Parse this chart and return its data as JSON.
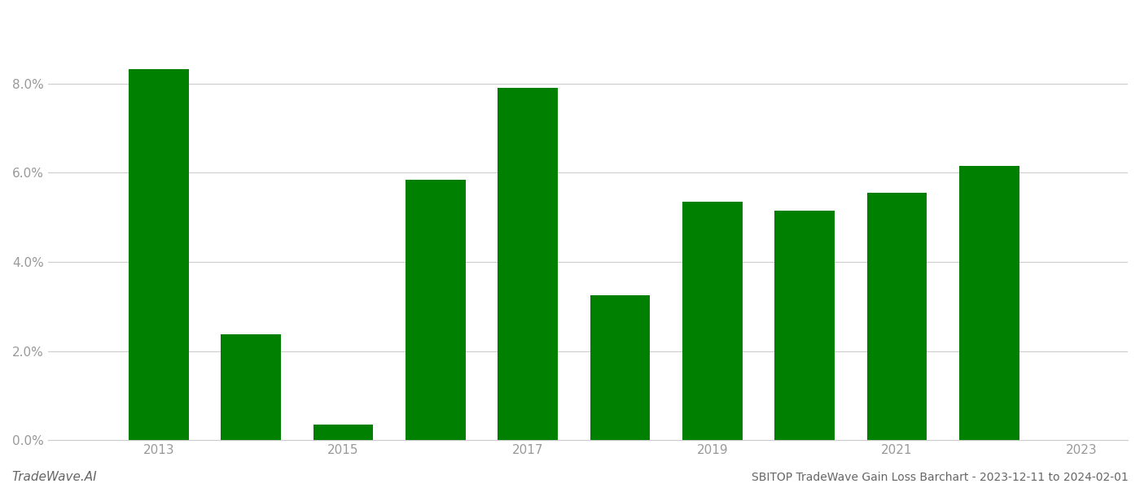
{
  "years": [
    2013,
    2014,
    2015,
    2016,
    2017,
    2018,
    2019,
    2020,
    2021,
    2022
  ],
  "values": [
    0.0832,
    0.0238,
    0.0035,
    0.0585,
    0.079,
    0.0325,
    0.0535,
    0.0515,
    0.0555,
    0.0615
  ],
  "bar_color": "#008000",
  "background_color": "#ffffff",
  "ylim": [
    0,
    0.096
  ],
  "yticks": [
    0.0,
    0.02,
    0.04,
    0.06,
    0.08
  ],
  "ytick_labels": [
    "0.0%",
    "2.0%",
    "4.0%",
    "6.0%",
    "8.0%"
  ],
  "xtick_positions": [
    2013,
    2015,
    2017,
    2019,
    2021,
    2023
  ],
  "xtick_labels": [
    "2013",
    "2015",
    "2017",
    "2019",
    "2021",
    "2023"
  ],
  "xlim": [
    2011.8,
    2023.5
  ],
  "footer_left": "TradeWave.AI",
  "footer_right": "SBITOP TradeWave Gain Loss Barchart - 2023-12-11 to 2024-02-01",
  "grid_color": "#cccccc",
  "tick_color": "#999999",
  "spine_color": "#cccccc",
  "bar_width": 0.65
}
